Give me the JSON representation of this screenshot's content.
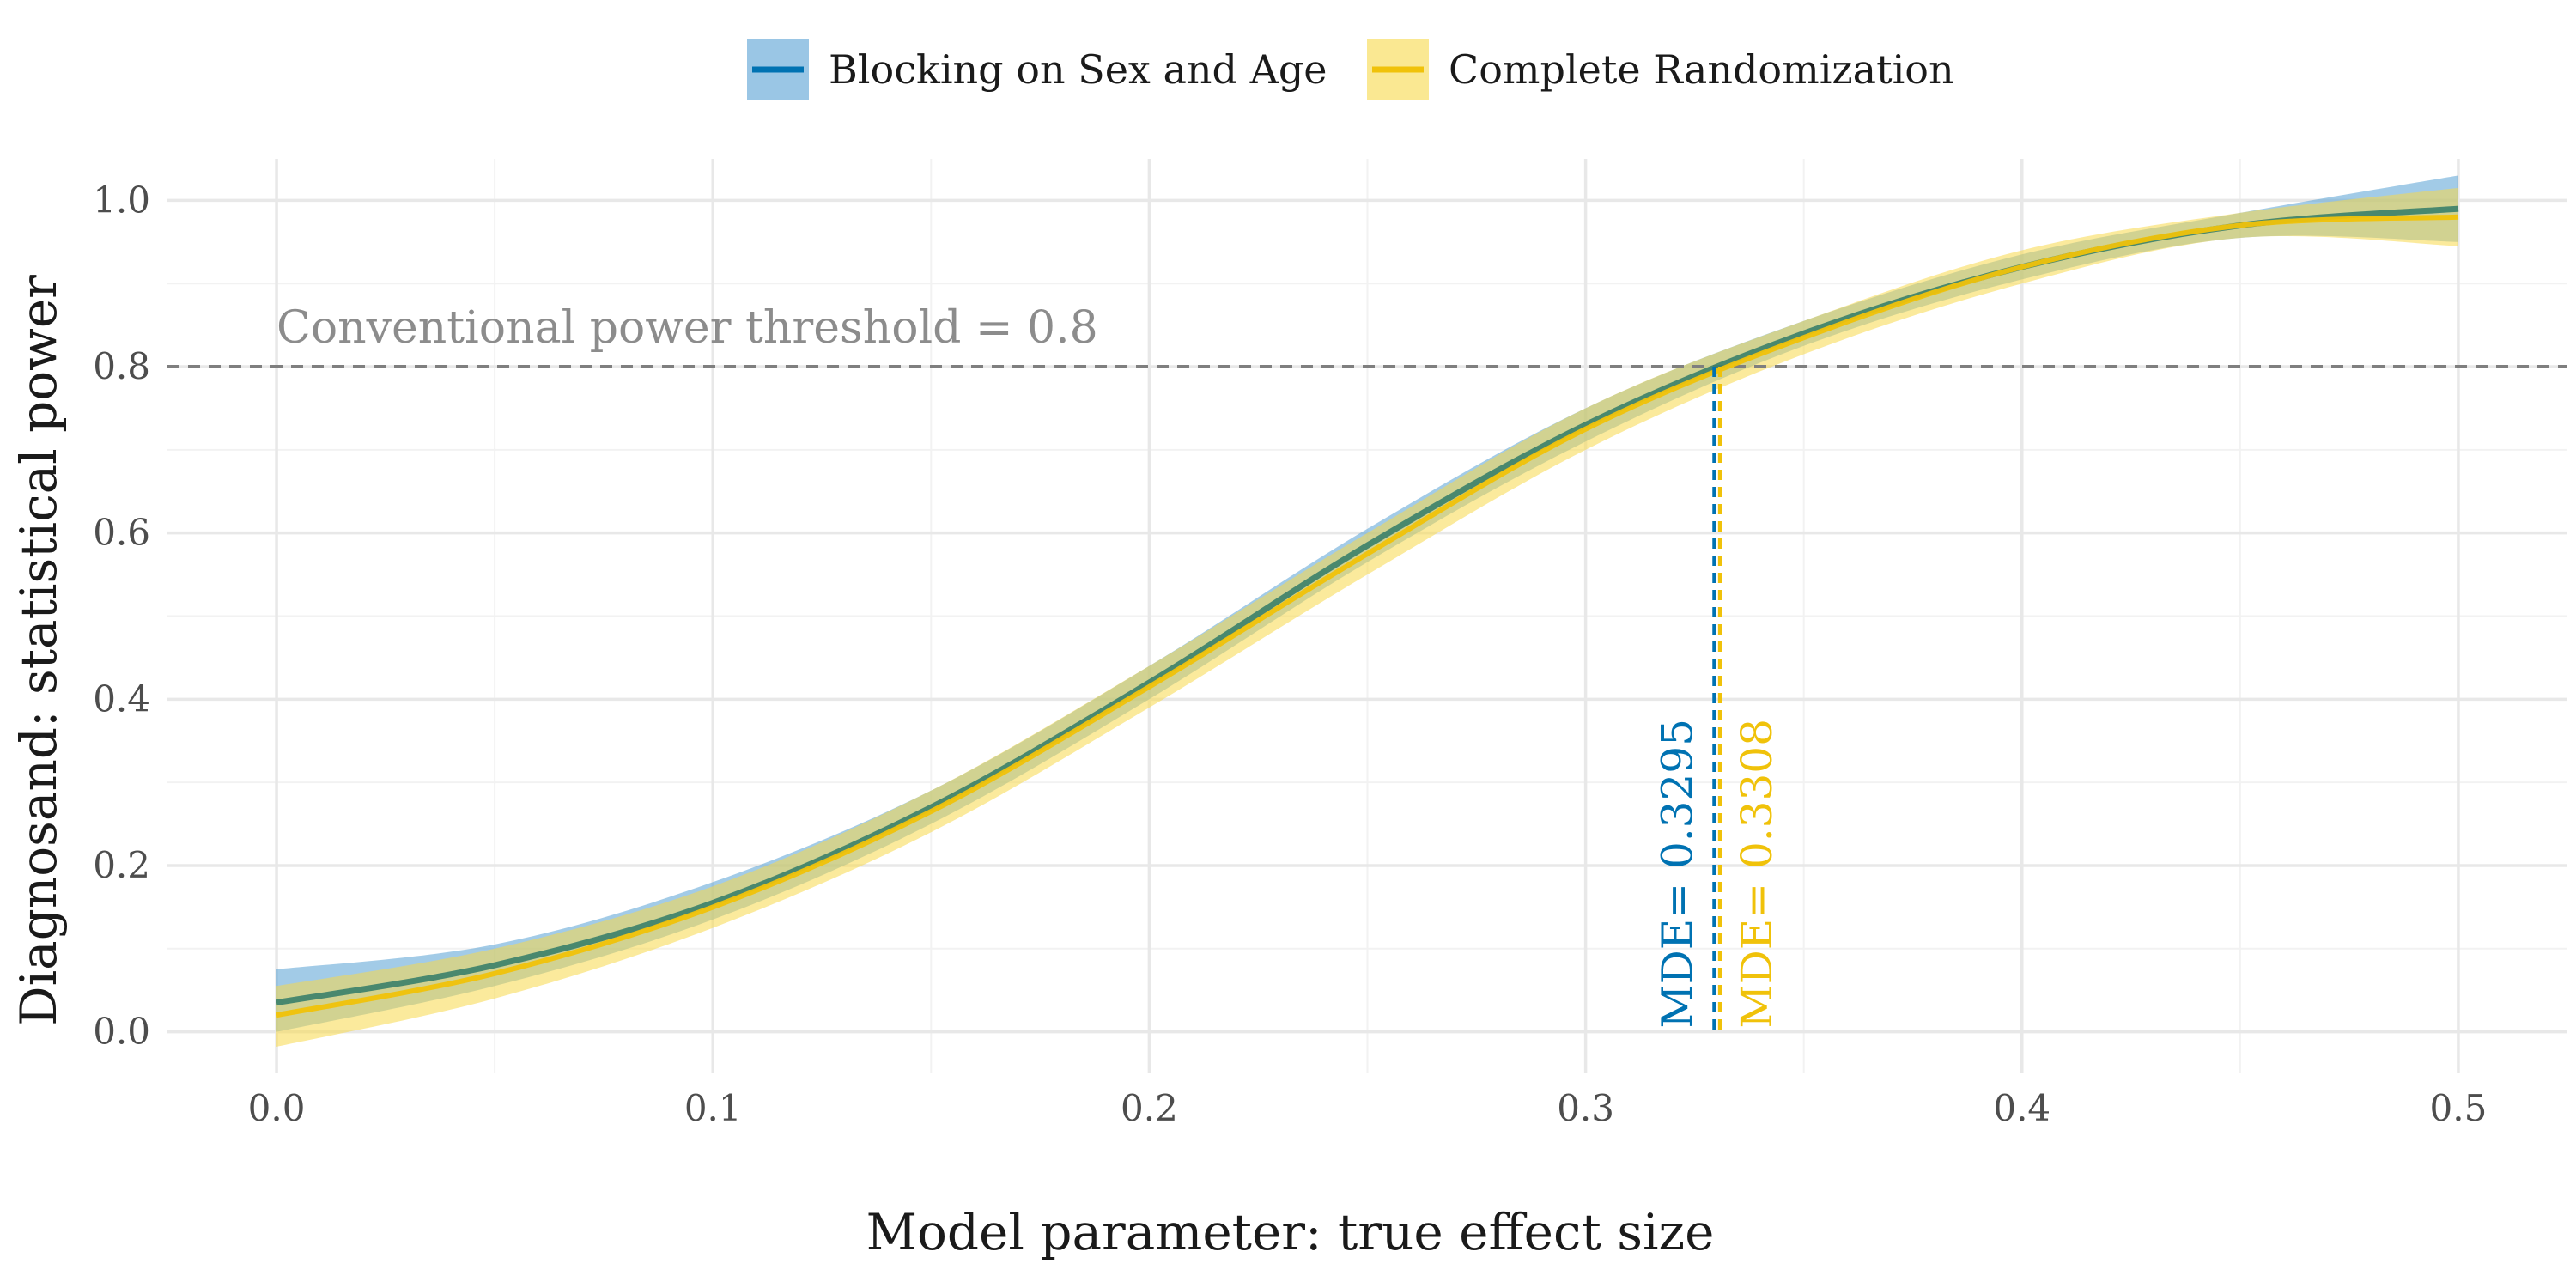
{
  "chart_data": {
    "type": "line",
    "xlabel": "Model parameter: true effect size",
    "ylabel": "Diagnosand: statistical power",
    "xlim": [
      -0.025,
      0.525
    ],
    "ylim": [
      -0.05,
      1.05
    ],
    "x_ticks": [
      "0.0",
      "0.1",
      "0.2",
      "0.3",
      "0.4",
      "0.5"
    ],
    "y_ticks": [
      "0.0",
      "0.2",
      "0.4",
      "0.6",
      "0.8",
      "1.0"
    ],
    "grid": true,
    "legend_position": "top",
    "threshold": {
      "value": 0.8,
      "label": "Conventional power threshold = 0.8",
      "color": "#8c8c8c"
    },
    "series": [
      {
        "name": "Blocking on Sex and Age",
        "color": "#0072b2",
        "band_color": "#56a0d3",
        "x": [
          0.0,
          0.05,
          0.1,
          0.15,
          0.2,
          0.25,
          0.3,
          0.35,
          0.4,
          0.45,
          0.5
        ],
        "y": [
          0.035,
          0.08,
          0.155,
          0.27,
          0.42,
          0.585,
          0.73,
          0.84,
          0.92,
          0.97,
          0.99
        ],
        "lower": [
          0.0,
          0.055,
          0.135,
          0.25,
          0.4,
          0.565,
          0.71,
          0.825,
          0.905,
          0.955,
          0.95
        ],
        "upper": [
          0.075,
          0.105,
          0.18,
          0.29,
          0.44,
          0.605,
          0.75,
          0.855,
          0.935,
          0.985,
          1.03
        ],
        "mde": 0.3295,
        "mde_label": "MDE= 0.3295"
      },
      {
        "name": "Complete Randomization",
        "color": "#f0c20a",
        "band_color": "#f7d84a",
        "x": [
          0.0,
          0.05,
          0.1,
          0.15,
          0.2,
          0.25,
          0.3,
          0.35,
          0.4,
          0.45,
          0.5
        ],
        "y": [
          0.02,
          0.07,
          0.15,
          0.265,
          0.415,
          0.575,
          0.725,
          0.835,
          0.92,
          0.97,
          0.98
        ],
        "lower": [
          -0.018,
          0.04,
          0.125,
          0.24,
          0.39,
          0.55,
          0.7,
          0.815,
          0.9,
          0.955,
          0.945
        ],
        "upper": [
          0.055,
          0.1,
          0.175,
          0.29,
          0.44,
          0.6,
          0.75,
          0.855,
          0.94,
          0.985,
          1.015
        ],
        "mde": 0.3308,
        "mde_label": "MDE= 0.3308"
      }
    ]
  }
}
